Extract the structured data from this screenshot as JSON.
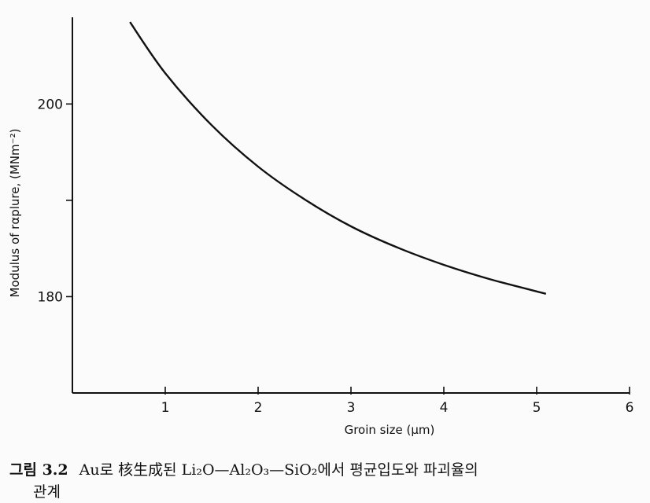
{
  "chart_data": {
    "type": "line",
    "title": "",
    "xlabel": "Groin size (μm)",
    "ylabel": "Modulus of rαplure, (MNm⁻²)",
    "xlim": [
      0,
      6
    ],
    "ylim": [
      170,
      209
    ],
    "x_ticks": [
      "1",
      "2",
      "3",
      "4",
      "5",
      "6"
    ],
    "y_ticks": [
      {
        "value": 200,
        "label": "200"
      },
      {
        "value": 190,
        "label": ""
      },
      {
        "value": 180,
        "label": "180"
      }
    ],
    "grid": false,
    "series": [
      {
        "values": [
          [
            0.62,
            208.5
          ],
          [
            1.0,
            203.2
          ],
          [
            1.5,
            197.8
          ],
          [
            2.0,
            193.5
          ],
          [
            2.5,
            190.1
          ],
          [
            3.0,
            187.3
          ],
          [
            3.5,
            185.1
          ],
          [
            4.0,
            183.3
          ],
          [
            4.5,
            181.8
          ],
          [
            5.1,
            180.3
          ]
        ]
      }
    ]
  },
  "caption": {
    "figure_number": "그림 3.2",
    "text_line1": "Au로 核生成된 Li₂O—Al₂O₃—SiO₂에서 평균입도와 파괴율의",
    "text_line2": "관계"
  },
  "colors": {
    "ink": "#111111",
    "paper": "#fbfbfb"
  }
}
